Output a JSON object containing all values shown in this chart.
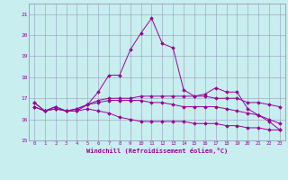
{
  "xlabel": "Windchill (Refroidissement éolien,°C)",
  "bg_color": "#c8eef0",
  "grid_color": "#9999bb",
  "line_color": "#990099",
  "spine_color": "#9999bb",
  "xlim": [
    -0.5,
    23.5
  ],
  "ylim": [
    15.0,
    21.5
  ],
  "yticks": [
    15,
    16,
    17,
    18,
    19,
    20,
    21
  ],
  "xticks": [
    0,
    1,
    2,
    3,
    4,
    5,
    6,
    7,
    8,
    9,
    10,
    11,
    12,
    13,
    14,
    15,
    16,
    17,
    18,
    19,
    20,
    21,
    22,
    23
  ],
  "series1_x": [
    0,
    1,
    2,
    3,
    4,
    5,
    6,
    7,
    8,
    9,
    10,
    11,
    12,
    13,
    14,
    15,
    16,
    17,
    18,
    19,
    20,
    21,
    22,
    23
  ],
  "series1_y": [
    16.8,
    16.4,
    16.5,
    16.4,
    16.4,
    16.7,
    17.3,
    18.1,
    18.1,
    19.3,
    20.1,
    20.8,
    19.6,
    19.4,
    17.4,
    17.1,
    17.2,
    17.5,
    17.3,
    17.3,
    16.5,
    16.2,
    15.9,
    15.5
  ],
  "series2_x": [
    0,
    1,
    2,
    3,
    4,
    5,
    6,
    7,
    8,
    9,
    10,
    11,
    12,
    13,
    14,
    15,
    16,
    17,
    18,
    19,
    20,
    21,
    22,
    23
  ],
  "series2_y": [
    16.6,
    16.4,
    16.6,
    16.4,
    16.5,
    16.7,
    16.9,
    17.0,
    17.0,
    17.0,
    17.1,
    17.1,
    17.1,
    17.1,
    17.1,
    17.1,
    17.1,
    17.0,
    17.0,
    17.0,
    16.8,
    16.8,
    16.7,
    16.6
  ],
  "series3_x": [
    0,
    1,
    2,
    3,
    4,
    5,
    6,
    7,
    8,
    9,
    10,
    11,
    12,
    13,
    14,
    15,
    16,
    17,
    18,
    19,
    20,
    21,
    22,
    23
  ],
  "series3_y": [
    16.6,
    16.4,
    16.6,
    16.4,
    16.5,
    16.7,
    16.8,
    16.9,
    16.9,
    16.9,
    16.9,
    16.8,
    16.8,
    16.7,
    16.6,
    16.6,
    16.6,
    16.6,
    16.5,
    16.4,
    16.3,
    16.2,
    16.0,
    15.8
  ],
  "series4_x": [
    0,
    1,
    2,
    3,
    4,
    5,
    6,
    7,
    8,
    9,
    10,
    11,
    12,
    13,
    14,
    15,
    16,
    17,
    18,
    19,
    20,
    21,
    22,
    23
  ],
  "series4_y": [
    16.8,
    16.4,
    16.5,
    16.4,
    16.4,
    16.5,
    16.4,
    16.3,
    16.1,
    16.0,
    15.9,
    15.9,
    15.9,
    15.9,
    15.9,
    15.8,
    15.8,
    15.8,
    15.7,
    15.7,
    15.6,
    15.6,
    15.5,
    15.5
  ]
}
